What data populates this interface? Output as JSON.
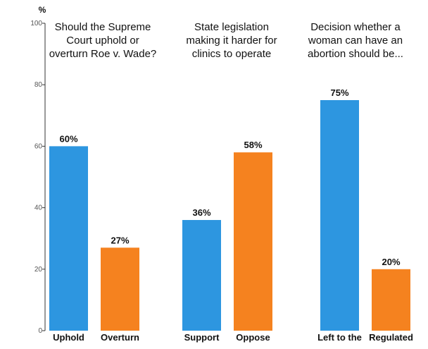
{
  "chart_data": {
    "type": "bar",
    "ylabel": "%",
    "ylim": [
      0,
      100
    ],
    "yticks": [
      0,
      20,
      40,
      60,
      80,
      100
    ],
    "grid": false,
    "legend": "none",
    "groups": [
      {
        "title": [
          "Should the Supreme",
          "Court uphold or",
          "overturn Roe v. Wade?"
        ],
        "bars": [
          {
            "label": "Uphold",
            "value": 60,
            "value_label": "60%",
            "color": "#2d96e0"
          },
          {
            "label": "Overturn",
            "value": 27,
            "value_label": "27%",
            "color": "#f5821f"
          }
        ]
      },
      {
        "title": [
          "State legislation",
          "making it harder for",
          "clinics to operate"
        ],
        "bars": [
          {
            "label": "Support",
            "value": 36,
            "value_label": "36%",
            "color": "#2d96e0"
          },
          {
            "label": "Oppose",
            "value": 58,
            "value_label": "58%",
            "color": "#f5821f"
          }
        ]
      },
      {
        "title": [
          "Decision whether a",
          "woman can have an",
          "abortion should be..."
        ],
        "bars": [
          {
            "label": "Left to the",
            "value": 75,
            "value_label": "75%",
            "color": "#2d96e0"
          },
          {
            "label": "Regulated",
            "value": 20,
            "value_label": "20%",
            "color": "#f5821f"
          }
        ]
      }
    ]
  }
}
